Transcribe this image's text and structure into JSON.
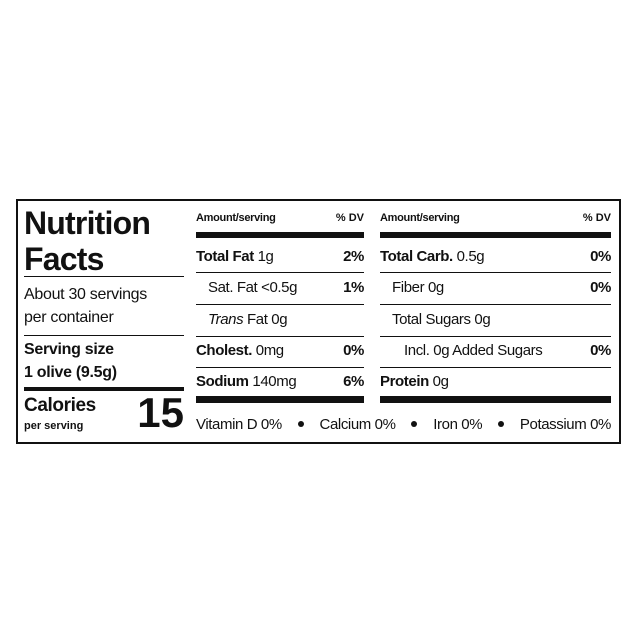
{
  "label": {
    "title": [
      "Nutrition",
      "Facts"
    ],
    "servings": [
      "About 30 servings",
      "per container"
    ],
    "serving_size": {
      "label": "Serving size",
      "value": "1 olive (9.5g)"
    },
    "calories": {
      "label": "Calories",
      "sublabel": "per serving",
      "value": "15"
    },
    "columns": [
      {
        "header": {
          "amount": "Amount/serving",
          "dv": "% DV"
        },
        "rows": [
          {
            "name": "Total Fat",
            "amount": "1g",
            "dv": "2%",
            "bold": true
          },
          {
            "name": "Sat. Fat",
            "amount": "<0.5g",
            "dv": "1%",
            "indent": 1
          },
          {
            "name_italic": "Trans",
            "name": "Fat",
            "amount": "0g",
            "indent": 1
          },
          {
            "name": "Cholest.",
            "amount": "0mg",
            "dv": "0%",
            "bold": true
          },
          {
            "name": "Sodium",
            "amount": "140mg",
            "dv": "6%",
            "bold": true
          }
        ]
      },
      {
        "header": {
          "amount": "Amount/serving",
          "dv": "% DV"
        },
        "rows": [
          {
            "name": "Total Carb.",
            "amount": "0.5g",
            "dv": "0%",
            "bold": true
          },
          {
            "name": "Fiber",
            "amount": "0g",
            "dv": "0%",
            "indent": 1
          },
          {
            "name": "Total Sugars",
            "amount": "0g",
            "indent": 1
          },
          {
            "name": "Incl. 0g Added Sugars",
            "dv": "0%",
            "indent": 2
          },
          {
            "name": "Protein",
            "amount": "0g",
            "bold": true
          }
        ]
      }
    ],
    "vitamins": [
      "Vitamin D 0%",
      "Calcium 0%",
      "Iron 0%",
      "Potassium 0%"
    ]
  }
}
